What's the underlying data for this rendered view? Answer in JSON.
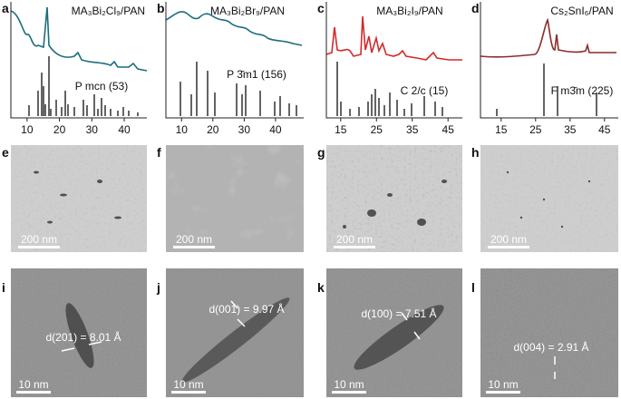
{
  "xrd": [
    {
      "label": "a",
      "title": "MA₃Bi₂Cl₉/PAN",
      "phase": "P mcn (53)",
      "xlim": [
        5,
        47
      ],
      "xticks": [
        10,
        20,
        30,
        40
      ]
    },
    {
      "label": "b",
      "title": "MA₃Bi₂Br₉/PAN",
      "phase": "P 3̄m1 (156)",
      "xlim": [
        5,
        49
      ],
      "xticks": [
        10,
        20,
        30,
        40
      ]
    },
    {
      "label": "c",
      "title": "MA₃Bi₂I₉/PAN",
      "phase": "C 2/c (15)",
      "xlim": [
        11,
        49
      ],
      "xticks": [
        15,
        25,
        35,
        45
      ]
    },
    {
      "label": "d",
      "title": "Cs₂SnI₆/PAN",
      "phase": "F m3̄m (225)",
      "xlim": [
        9,
        49
      ],
      "xticks": [
        15,
        25,
        35,
        45
      ]
    }
  ],
  "tem": [
    {
      "label": "e",
      "scale_bar": "200 nm"
    },
    {
      "label": "f",
      "scale_bar": "200 nm"
    },
    {
      "label": "g",
      "scale_bar": "200 nm"
    },
    {
      "label": "h",
      "scale_bar": "200 nm"
    }
  ],
  "hrtem": [
    {
      "label": "i",
      "d_spacing": "d(201) = 8.01 Å",
      "scale_bar": "10 nm"
    },
    {
      "label": "j",
      "d_spacing": "d(001) = 9.97 Å",
      "scale_bar": "10 nm"
    },
    {
      "label": "k",
      "d_spacing": "d(100) = 7.51 Å",
      "scale_bar": "10 nm"
    },
    {
      "label": "l",
      "d_spacing": "d(004) = 2.91 Å",
      "scale_bar": "10 nm"
    }
  ]
}
